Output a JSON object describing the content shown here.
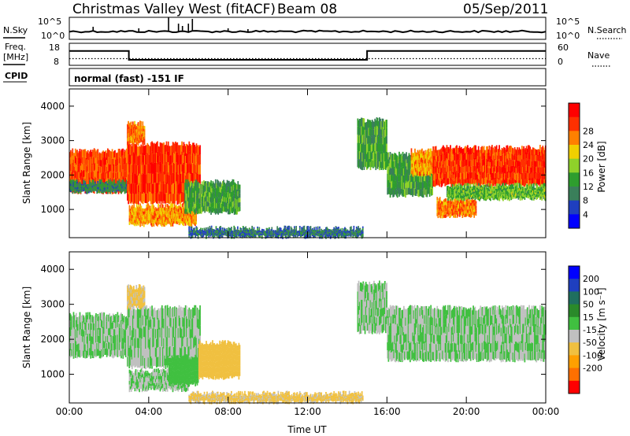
{
  "header": {
    "title": "Christmas Valley West (fitACF)",
    "beam": "Beam 08",
    "date": "05/Sep/2011"
  },
  "top_panels": {
    "nsky_label": "N.Sky",
    "nsky_ticks": [
      "10^5",
      "10^0"
    ],
    "nsearch_label": "N.Search",
    "nsearch_ticks": [
      "10^5",
      "10^0"
    ],
    "freq_label": "Freq.",
    "freq_unit": "[MHz]",
    "freq_ticks": [
      "18",
      "8"
    ],
    "nave_label": "Nave",
    "nave_ticks": [
      "60",
      "0"
    ],
    "cpid_label": "CPID",
    "cpid_text": "normal (fast) -151 IF"
  },
  "colors": {
    "power": [
      "#0000ff",
      "#1f3fbf",
      "#3a7f5a",
      "#2e9d2e",
      "#8fd12a",
      "#f0d000",
      "#ff8000",
      "#ff3000",
      "#ff0000"
    ],
    "velocity": [
      "#ff0000",
      "#ff7000",
      "#ffa000",
      "#f0c040",
      "#c0c0c0",
      "#40c040",
      "#2a8a2a",
      "#1f6f5f",
      "#1f3fbf",
      "#0000ff"
    ]
  },
  "chart_data": [
    {
      "type": "line",
      "name": "freq-nave",
      "x": [
        "00:00",
        "03:00",
        "15:00",
        "24:00"
      ],
      "freq_mhz": [
        14.5,
        10.5,
        14.5,
        14.5
      ],
      "nave": [
        1,
        1,
        1,
        1
      ],
      "ylim_freq": [
        8,
        18
      ]
    },
    {
      "type": "heatmap",
      "name": "power",
      "ylabel": "Slant Range [km]",
      "xlabel": "Time UT",
      "x_ticks": [
        "00:00",
        "04:00",
        "08:00",
        "12:00",
        "16:00",
        "20:00",
        "00:00"
      ],
      "y_ticks": [
        "1000",
        "2000",
        "3000",
        "4000"
      ],
      "xlim_hours": [
        0,
        24
      ],
      "ylim_km": [
        180,
        4500
      ],
      "colorbar": {
        "label": "Power [dB]",
        "ticks": [
          "4",
          "8",
          "12",
          "16",
          "20",
          "24",
          "28"
        ],
        "range": [
          0,
          32
        ]
      },
      "regions": [
        {
          "t0": 0.0,
          "t1": 2.9,
          "r0": 1500,
          "r1": 2700,
          "level": 26
        },
        {
          "t0": 0.0,
          "t1": 2.9,
          "r0": 1500,
          "r1": 1800,
          "level": 10
        },
        {
          "t0": 2.9,
          "t1": 6.6,
          "r0": 1200,
          "r1": 2900,
          "level": 27
        },
        {
          "t0": 2.9,
          "t1": 3.8,
          "r0": 2900,
          "r1": 3500,
          "level": 24
        },
        {
          "t0": 3.0,
          "t1": 6.4,
          "r0": 550,
          "r1": 1100,
          "level": 22
        },
        {
          "t0": 5.8,
          "t1": 8.6,
          "r0": 900,
          "r1": 1800,
          "level": 12
        },
        {
          "t0": 6.0,
          "t1": 14.8,
          "r0": 200,
          "r1": 450,
          "level": 8
        },
        {
          "t0": 14.5,
          "t1": 16.0,
          "r0": 2200,
          "r1": 3600,
          "level": 12
        },
        {
          "t0": 16.0,
          "t1": 18.3,
          "r0": 1400,
          "r1": 2600,
          "level": 12
        },
        {
          "t0": 17.2,
          "t1": 18.5,
          "r0": 2000,
          "r1": 2700,
          "level": 22
        },
        {
          "t0": 18.3,
          "t1": 24.0,
          "r0": 1700,
          "r1": 2800,
          "level": 27
        },
        {
          "t0": 18.5,
          "t1": 20.5,
          "r0": 800,
          "r1": 1300,
          "level": 24
        },
        {
          "t0": 19.0,
          "t1": 24.0,
          "r0": 1300,
          "r1": 1700,
          "level": 14
        }
      ]
    },
    {
      "type": "heatmap",
      "name": "velocity",
      "ylabel": "Slant Range [km]",
      "xlabel": "Time UT",
      "x_ticks": [
        "00:00",
        "04:00",
        "08:00",
        "12:00",
        "16:00",
        "20:00",
        "00:00"
      ],
      "y_ticks": [
        "1000",
        "2000",
        "3000",
        "4000"
      ],
      "xlim_hours": [
        0,
        24
      ],
      "ylim_km": [
        180,
        4500
      ],
      "colorbar": {
        "label": "Velocity [m s⁻¹]",
        "ticks": [
          "200",
          "100",
          "50",
          "15",
          "-15",
          "-50",
          "-100",
          "-200"
        ],
        "range": [
          -250,
          250
        ]
      },
      "regions": [
        {
          "t0": 0.0,
          "t1": 2.9,
          "r0": 1500,
          "r1": 2700,
          "level": 0
        },
        {
          "t0": 2.9,
          "t1": 6.6,
          "r0": 1200,
          "r1": 2900,
          "level": 0
        },
        {
          "t0": 2.9,
          "t1": 3.8,
          "r0": 2900,
          "r1": 3500,
          "level": -60
        },
        {
          "t0": 3.0,
          "t1": 6.0,
          "r0": 550,
          "r1": 1100,
          "level": 0
        },
        {
          "t0": 5.0,
          "t1": 6.5,
          "r0": 700,
          "r1": 1500,
          "level": 30
        },
        {
          "t0": 6.5,
          "t1": 8.6,
          "r0": 900,
          "r1": 1900,
          "level": -70
        },
        {
          "t0": 6.0,
          "t1": 14.8,
          "r0": 200,
          "r1": 450,
          "level": -60
        },
        {
          "t0": 14.5,
          "t1": 16.0,
          "r0": 2200,
          "r1": 3600,
          "level": 0
        },
        {
          "t0": 16.0,
          "t1": 24.0,
          "r0": 1400,
          "r1": 2900,
          "level": 0
        }
      ]
    }
  ]
}
